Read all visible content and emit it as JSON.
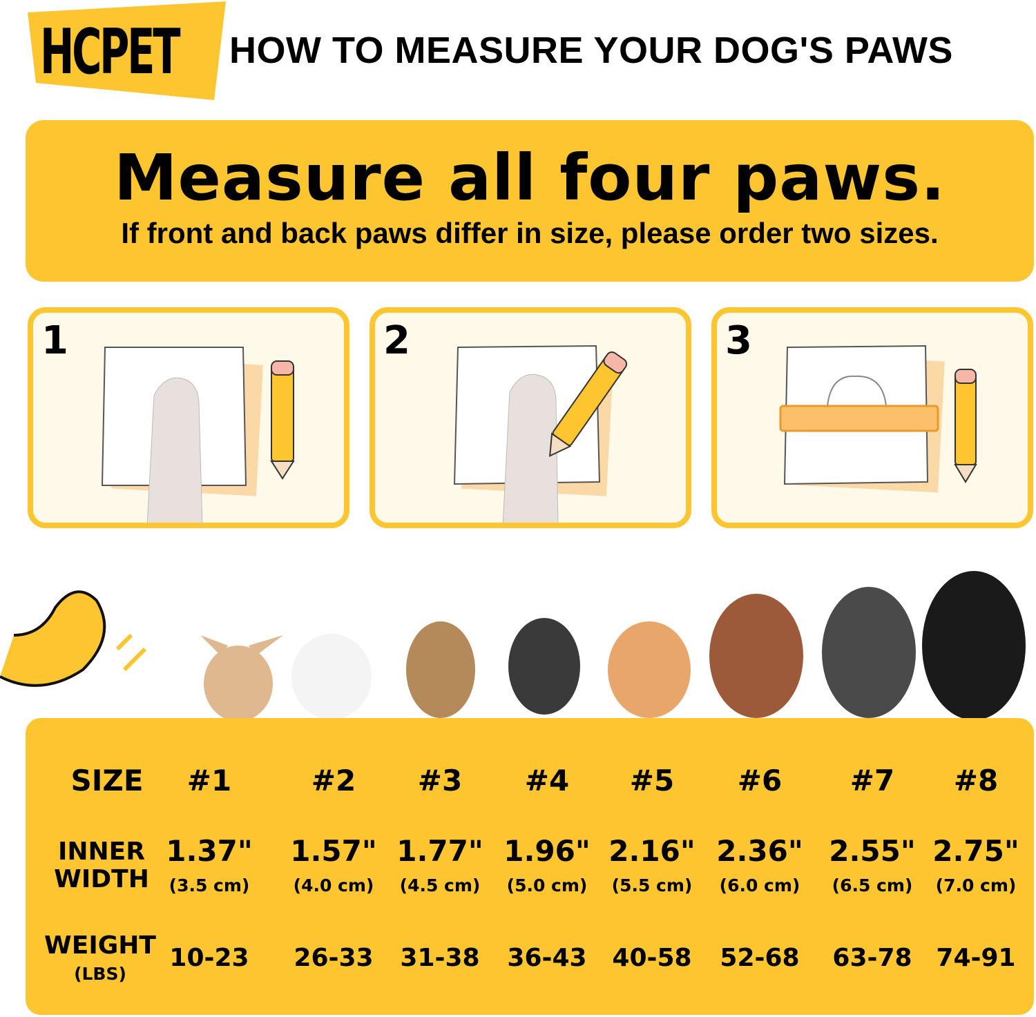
{
  "header": {
    "logo": "HCPET",
    "title": "HOW TO MEASURE YOUR DOG'S PAWS"
  },
  "banner": {
    "headline": "Measure all four paws.",
    "subline": "If front and back paws differ in size, please order two sizes."
  },
  "steps": [
    {
      "number": "1",
      "icon": "paw-on-paper-icon"
    },
    {
      "number": "2",
      "icon": "trace-paw-with-pencil-icon"
    },
    {
      "number": "3",
      "icon": "ruler-measure-outline-icon"
    }
  ],
  "colors": {
    "accent": "#FDC630",
    "card_fill": "#FFF9EA",
    "text": "#000000"
  },
  "size_chart": {
    "row_labels": {
      "size": "SIZE",
      "inner_width_1": "INNER",
      "inner_width_2": "WIDTH",
      "weight": "WEIGHT",
      "weight_unit": "(LBS)"
    },
    "columns": [
      {
        "size": "#1",
        "inch": "1.37\"",
        "cm": "(3.5 cm)",
        "weight": "10-23"
      },
      {
        "size": "#2",
        "inch": "1.57\"",
        "cm": "(4.0 cm)",
        "weight": "26-33"
      },
      {
        "size": "#3",
        "inch": "1.77\"",
        "cm": "(4.5 cm)",
        "weight": "31-38"
      },
      {
        "size": "#4",
        "inch": "1.96\"",
        "cm": "(5.0 cm)",
        "weight": "36-43"
      },
      {
        "size": "#5",
        "inch": "2.16\"",
        "cm": "(5.5 cm)",
        "weight": "40-58"
      },
      {
        "size": "#6",
        "inch": "2.36\"",
        "cm": "(6.0 cm)",
        "weight": "52-68"
      },
      {
        "size": "#7",
        "inch": "2.55\"",
        "cm": "(6.5 cm)",
        "weight": "63-78"
      },
      {
        "size": "#8",
        "inch": "2.75\"",
        "cm": "(7.0 cm)",
        "weight": "74-91"
      }
    ]
  }
}
